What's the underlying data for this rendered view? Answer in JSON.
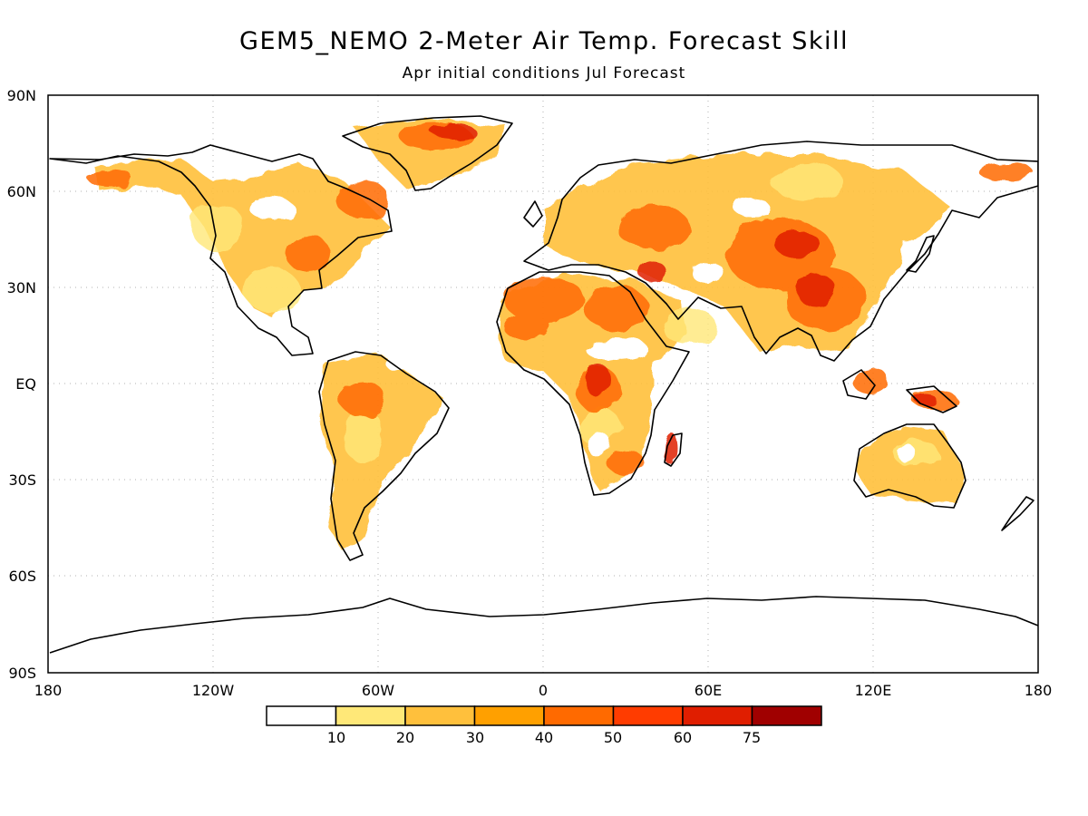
{
  "title": "GEM5_NEMO 2-Meter Air Temp. Forecast Skill",
  "subtitle": "Apr initial conditions   Jul Forecast",
  "axes": {
    "lon_ticks": [
      "180",
      "120W",
      "60W",
      "0",
      "60E",
      "120E",
      "180"
    ],
    "lat_ticks": [
      "90N",
      "60N",
      "30N",
      "EQ",
      "30S",
      "60S",
      "90S"
    ]
  },
  "colorbar": {
    "colors": [
      "#ffffff",
      "#ffe878",
      "#ffc03c",
      "#ffa000",
      "#ff6a00",
      "#ff3c00",
      "#e01e00",
      "#a00000"
    ],
    "labels": [
      "10",
      "20",
      "30",
      "40",
      "50",
      "60",
      "75"
    ]
  }
}
